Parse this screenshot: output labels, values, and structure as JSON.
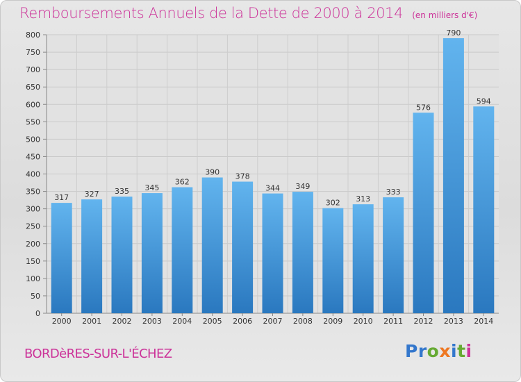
{
  "chart_data": {
    "type": "bar",
    "title": "Remboursements Annuels de la Dette de 2000 à 2014",
    "subtitle": "(en milliers d'€)",
    "categories": [
      "2000",
      "2001",
      "2002",
      "2003",
      "2004",
      "2005",
      "2006",
      "2007",
      "2008",
      "2009",
      "2010",
      "2011",
      "2012",
      "2013",
      "2014"
    ],
    "values": [
      317,
      327,
      335,
      345,
      362,
      390,
      378,
      344,
      349,
      302,
      313,
      333,
      576,
      790,
      594
    ],
    "ylim": [
      0,
      800
    ],
    "yticks": [
      0,
      50,
      100,
      150,
      200,
      250,
      300,
      350,
      400,
      450,
      500,
      550,
      600,
      650,
      700,
      750,
      800
    ],
    "xlabel": "",
    "ylabel": "",
    "grid": true,
    "bar_color": "#3a8fd8"
  },
  "place": "BORDèRES-SUR-L'ÉCHEZ",
  "logo": {
    "letters": [
      "P",
      "r",
      "o",
      "x",
      "i",
      "t",
      "i"
    ],
    "colors": [
      "#3377cc",
      "#3377cc",
      "#66aa33",
      "#ee7722",
      "#3377cc",
      "#66aa33",
      "#cc3399"
    ]
  }
}
